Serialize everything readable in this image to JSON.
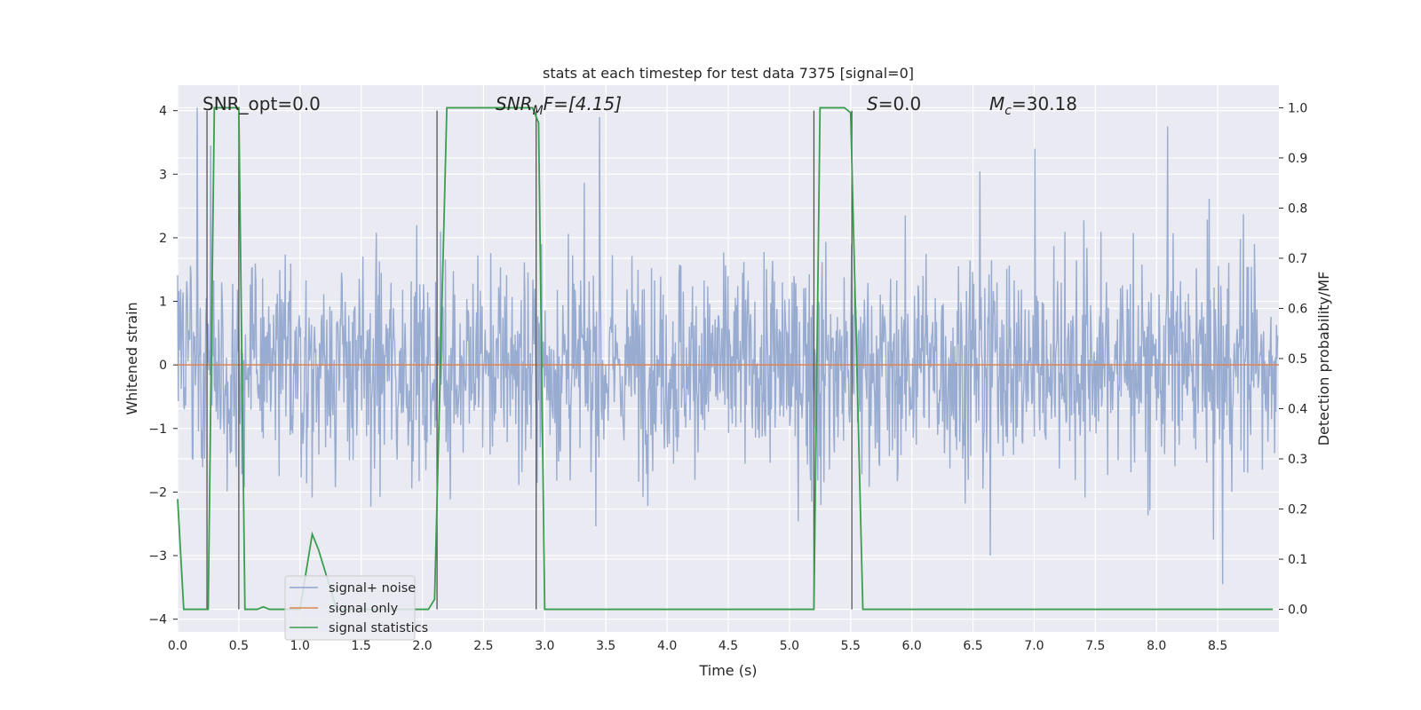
{
  "chart_data": {
    "type": "line",
    "title": "stats at each timestep for test data 7375 [signal=0]",
    "xlabel": "Time (s)",
    "ylabel_left": "Whitened strain",
    "ylabel_right": "Detection probability/MF",
    "xlim": [
      0.0,
      9.0
    ],
    "ylim_left": [
      -4.2,
      4.4
    ],
    "ylim_right": [
      -0.045,
      1.045
    ],
    "x_ticks": [
      "0.0",
      "0.5",
      "1.0",
      "1.5",
      "2.0",
      "2.5",
      "3.0",
      "3.5",
      "4.0",
      "4.5",
      "5.0",
      "5.5",
      "6.0",
      "6.5",
      "7.0",
      "7.5",
      "8.0",
      "8.5"
    ],
    "y_ticks_left": [
      "4",
      "3",
      "2",
      "1",
      "0",
      "−1",
      "−2",
      "−3",
      "−4"
    ],
    "y_ticks_right": [
      "1.0",
      "0.9",
      "0.8",
      "0.7",
      "0.6",
      "0.5",
      "0.4",
      "0.3",
      "0.2",
      "0.1",
      "0.0"
    ],
    "grid": true,
    "legend_position": "lower-left",
    "annotations": {
      "snr_opt": "SNR_opt=0.0",
      "snr_mf_base": "SNR",
      "snr_mf_sub": "M",
      "snr_mf_rest": "F=[4.15]",
      "s_sym": "S",
      "s_val": "=0.0",
      "mc_sym": "M",
      "mc_sub": "c",
      "mc_val": "=30.18"
    },
    "series": [
      {
        "name": "signal+ noise",
        "axis": "left",
        "color": "#8fa4cc",
        "description_of_values": "whitened strain noise, roughly within -3.6 to 4.1",
        "peaks": [
          [
            0.16,
            4.05
          ],
          [
            0.27,
            3.45
          ],
          [
            3.45,
            3.9
          ],
          [
            8.1,
            3.75
          ],
          [
            8.55,
            -3.45
          ],
          [
            6.65,
            -3.0
          ]
        ]
      },
      {
        "name": "signal only",
        "axis": "left",
        "color": "#dd8452",
        "x": [
          0.0,
          9.0
        ],
        "y": [
          0.0,
          0.0
        ]
      },
      {
        "name": "signal statistics",
        "axis": "right",
        "color": "#3a9e4e",
        "x": [
          0.0,
          0.05,
          0.25,
          0.3,
          0.5,
          0.55,
          0.6,
          0.65,
          0.7,
          0.75,
          0.9,
          1.0,
          1.1,
          1.15,
          1.3,
          2.05,
          2.1,
          2.2,
          2.9,
          2.95,
          3.0,
          3.1,
          5.1,
          5.2,
          5.25,
          5.3,
          5.45,
          5.5,
          5.6,
          8.95
        ],
        "y": [
          0.22,
          0.0,
          0.0,
          1.0,
          1.0,
          0.0,
          0.0,
          0.0,
          0.005,
          0.0,
          0.0,
          0.0,
          0.15,
          0.12,
          0.0,
          0.0,
          0.02,
          1.0,
          1.0,
          0.97,
          0.0,
          0.0,
          0.0,
          0.0,
          1.0,
          1.0,
          1.0,
          0.99,
          0.0,
          0.0
        ]
      }
    ],
    "vertical_lines_x": [
      0.24,
      0.5,
      2.12,
      2.93,
      5.2,
      5.51
    ],
    "vertical_line_color": "#555555"
  }
}
